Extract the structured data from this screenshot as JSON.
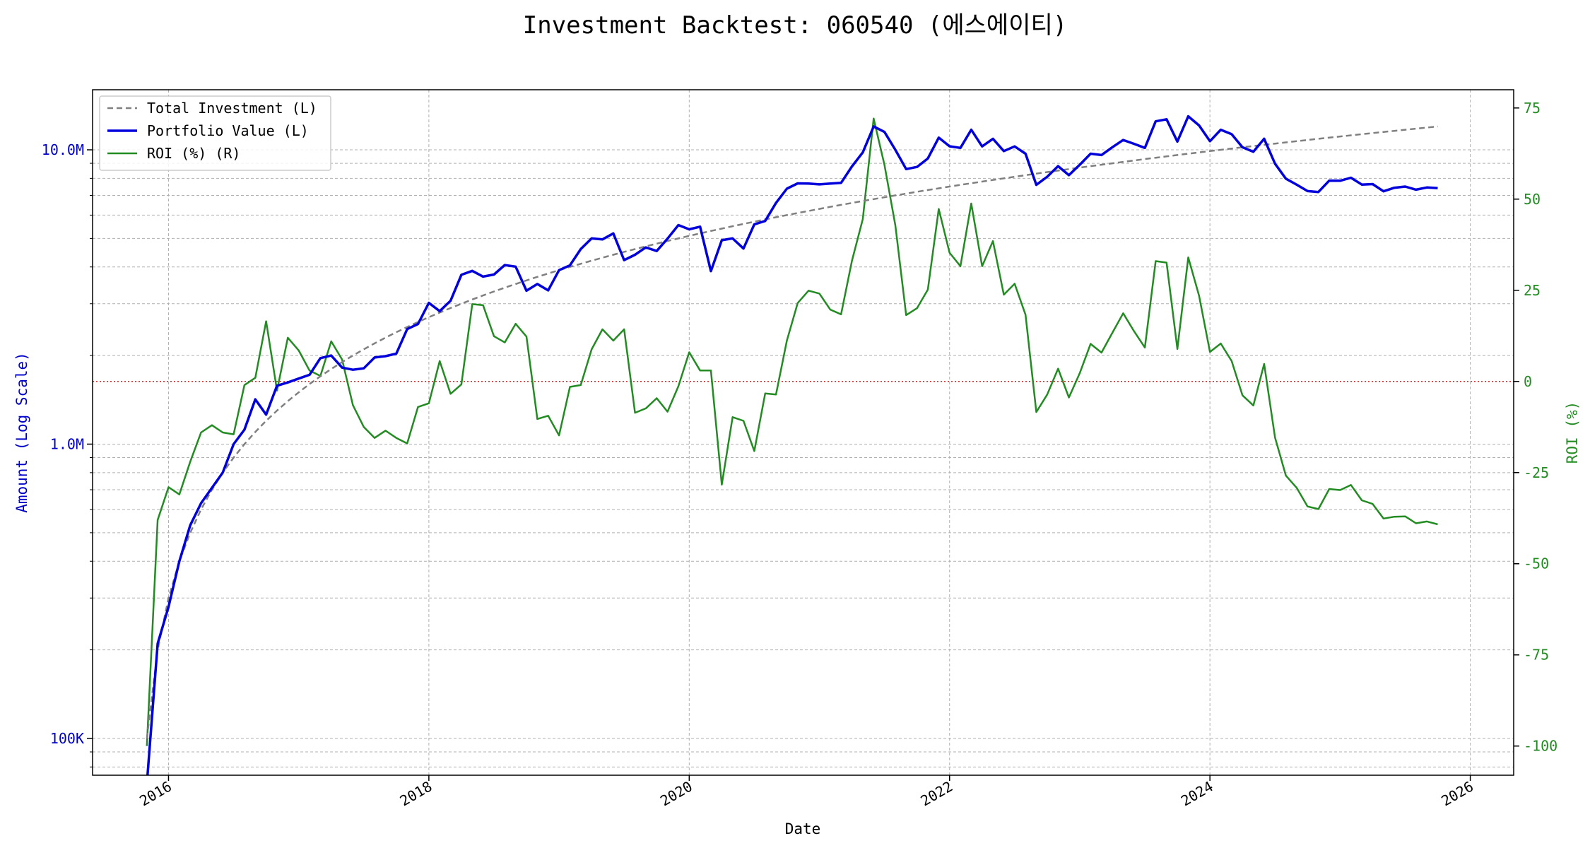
{
  "chart_data": {
    "type": "line",
    "title": "Investment Backtest: 060540 (에스에이티)",
    "xlabel": "Date",
    "ylabel_left": "Amount (Log Scale)",
    "ylabel_right": "ROI (%)",
    "x_ticks": [
      "2016",
      "2018",
      "2020",
      "2022",
      "2024",
      "2026"
    ],
    "y_left_ticks": [
      "100K",
      "1.0M",
      "10.0M"
    ],
    "y_right_ticks": [
      "-100",
      "-75",
      "-50",
      "-25",
      "0",
      "25",
      "50",
      "75"
    ],
    "y_left_scale": "log",
    "y_left_range": [
      75000,
      16000000
    ],
    "y_right_range": [
      -108,
      80
    ],
    "x_range": [
      "2015-06",
      "2026-05"
    ],
    "grid": true,
    "legend_position": "top-left",
    "zero_line_color": "#d62728",
    "dates": [
      "2015-11",
      "2015-12",
      "2016-01",
      "2016-02",
      "2016-03",
      "2016-04",
      "2016-05",
      "2016-06",
      "2016-07",
      "2016-08",
      "2016-09",
      "2016-10",
      "2016-11",
      "2016-12",
      "2017-01",
      "2017-02",
      "2017-03",
      "2017-04",
      "2017-05",
      "2017-06",
      "2017-07",
      "2017-08",
      "2017-09",
      "2017-10",
      "2017-11",
      "2017-12",
      "2018-01",
      "2018-02",
      "2018-03",
      "2018-04",
      "2018-05",
      "2018-06",
      "2018-07",
      "2018-08",
      "2018-09",
      "2018-10",
      "2018-11",
      "2018-12",
      "2019-01",
      "2019-02",
      "2019-03",
      "2019-04",
      "2019-05",
      "2019-06",
      "2019-07",
      "2019-08",
      "2019-09",
      "2019-10",
      "2019-11",
      "2019-12",
      "2020-01",
      "2020-02",
      "2020-03",
      "2020-04",
      "2020-05",
      "2020-06",
      "2020-07",
      "2020-08",
      "2020-09",
      "2020-10",
      "2020-11",
      "2020-12",
      "2021-01",
      "2021-02",
      "2021-03",
      "2021-04",
      "2021-05",
      "2021-06",
      "2021-07",
      "2021-08",
      "2021-09",
      "2021-10",
      "2021-11",
      "2021-12",
      "2022-01",
      "2022-02",
      "2022-03",
      "2022-04",
      "2022-05",
      "2022-06",
      "2022-07",
      "2022-08",
      "2022-09",
      "2022-10",
      "2022-11",
      "2022-12",
      "2023-01",
      "2023-02",
      "2023-03",
      "2023-04",
      "2023-05",
      "2023-06",
      "2023-07",
      "2023-08",
      "2023-09",
      "2023-10",
      "2023-11",
      "2023-12",
      "2024-01",
      "2024-02",
      "2024-03",
      "2024-04",
      "2024-05",
      "2024-06",
      "2024-07",
      "2024-08",
      "2024-09",
      "2024-10",
      "2024-11",
      "2024-12",
      "2025-01",
      "2025-02",
      "2025-03",
      "2025-04",
      "2025-05",
      "2025-06",
      "2025-07",
      "2025-08",
      "2025-09",
      "2025-10"
    ],
    "series": [
      {
        "name": "Total Investment (L)",
        "axis": "left",
        "color": "#808080",
        "dash": true,
        "values": [
          100000,
          200000,
          300000,
          400000,
          500000,
          600000,
          700000,
          800000,
          900000,
          1000000,
          1100000,
          1200000,
          1300000,
          1400000,
          1500000,
          1600000,
          1700000,
          1800000,
          1900000,
          2000000,
          2100000,
          2200000,
          2300000,
          2400000,
          2500000,
          2600000,
          2700000,
          2800000,
          2900000,
          3000000,
          3100000,
          3200000,
          3300000,
          3400000,
          3500000,
          3600000,
          3700000,
          3800000,
          3900000,
          4000000,
          4100000,
          4200000,
          4300000,
          4400000,
          4500000,
          4600000,
          4700000,
          4800000,
          4900000,
          5000000,
          5100000,
          5200000,
          5300000,
          5400000,
          5500000,
          5600000,
          5700000,
          5800000,
          5900000,
          6000000,
          6100000,
          6200000,
          6300000,
          6400000,
          6500000,
          6600000,
          6700000,
          6800000,
          6900000,
          7000000,
          7100000,
          7200000,
          7300000,
          7400000,
          7500000,
          7600000,
          7700000,
          7800000,
          7900000,
          8000000,
          8100000,
          8200000,
          8300000,
          8400000,
          8500000,
          8600000,
          8700000,
          8800000,
          8900000,
          9000000,
          9100000,
          9200000,
          9300000,
          9400000,
          9500000,
          9600000,
          9700000,
          9800000,
          9900000,
          10000000,
          10100000,
          10200000,
          10300000,
          10400000,
          10500000,
          10600000,
          10700000,
          10800000,
          10900000,
          11000000,
          11100000,
          11200000,
          11300000,
          11400000,
          11500000,
          11600000,
          11700000,
          11800000,
          11900000,
          12000000
        ]
      },
      {
        "name": "Portfolio Value (L)",
        "axis": "left",
        "color": "#0000dd",
        "values": [
          70000,
          210000,
          280000,
          400000,
          530000,
          630000,
          710000,
          800000,
          1000000,
          1120000,
          1420000,
          1260000,
          1580000,
          1620000,
          1670000,
          1720000,
          1960000,
          2000000,
          1820000,
          1790000,
          1810000,
          1970000,
          1990000,
          2030000,
          2460000,
          2560000,
          3020000,
          2830000,
          3070000,
          3760000,
          3880000,
          3710000,
          3770000,
          4060000,
          4010000,
          3320000,
          3500000,
          3330000,
          3900000,
          4050000,
          4600000,
          5000000,
          4960000,
          5200000,
          4220000,
          4400000,
          4660000,
          4530000,
          4990000,
          5550000,
          5370000,
          5480000,
          3870000,
          4930000,
          5000000,
          4620000,
          5580000,
          5730000,
          6600000,
          7380000,
          7690000,
          7680000,
          7630000,
          7680000,
          7720000,
          8780000,
          9800000,
          12000000,
          11500000,
          10000000,
          8600000,
          8750000,
          9350000,
          11000000,
          10280000,
          10150000,
          11700000,
          10270000,
          10900000,
          9900000,
          10270000,
          9700000,
          7600000,
          8100000,
          8800000,
          8200000,
          8900000,
          9700000,
          9600000,
          10200000,
          10800000,
          10480000,
          10150000,
          12500000,
          12700000,
          10670000,
          13000000,
          12100000,
          10700000,
          11700000,
          11300000,
          10200000,
          9850000,
          10900000,
          8970000,
          7980000,
          7610000,
          7240000,
          7190000,
          7860000,
          7850000,
          8040000,
          7620000,
          7650000,
          7230000,
          7430000,
          7500000,
          7320000,
          7450000,
          7410000
        ]
      },
      {
        "name": "ROI (%) (R)",
        "axis": "right",
        "color": "#228b22",
        "values": [
          -100,
          -38,
          -29,
          -31,
          -22,
          -14,
          -12,
          -14,
          -14.5,
          -1,
          1,
          16.5,
          -2.5,
          12,
          8.5,
          3,
          1.5,
          11,
          6,
          -6.5,
          -12.5,
          -15.5,
          -13.5,
          -15.5,
          -17,
          -7,
          -6,
          5.6,
          -3.4,
          -0.8,
          21.2,
          20.9,
          12.4,
          10.7,
          15.8,
          12.3,
          -10.3,
          -9.4,
          -14.8,
          -1.5,
          -1,
          8.8,
          14.3,
          11.2,
          14.3,
          -8.6,
          -7.4,
          -4.6,
          -8.3,
          -1.3,
          8,
          3,
          3,
          -28.3,
          -9.8,
          -10.8,
          -19.1,
          -3.3,
          -3.6,
          11.2,
          21.5,
          24.9,
          24.1,
          19.7,
          18.4,
          33.1,
          44.5,
          72.1,
          59.4,
          42.8,
          18.2,
          20.1,
          25.2,
          47.3,
          35.3,
          31.6,
          48.8,
          31.6,
          38.5,
          23.8,
          26.8,
          18.3,
          -8.4,
          -3.6,
          3.5,
          -4.4,
          2.3,
          10.3,
          7.9,
          13.3,
          18.7,
          13.8,
          9.3,
          33,
          32.6,
          8.9,
          34,
          23.5,
          8.1,
          10.4,
          5.6,
          -3.8,
          -6.6,
          4.8,
          -15.4,
          -25.8,
          -29.2,
          -34.3,
          -35,
          -29.5,
          -29.8,
          -28.4,
          -32.6,
          -33.6,
          -37.6,
          -37.1,
          -37,
          -38.9,
          -38.4,
          -39.2
        ]
      }
    ]
  }
}
